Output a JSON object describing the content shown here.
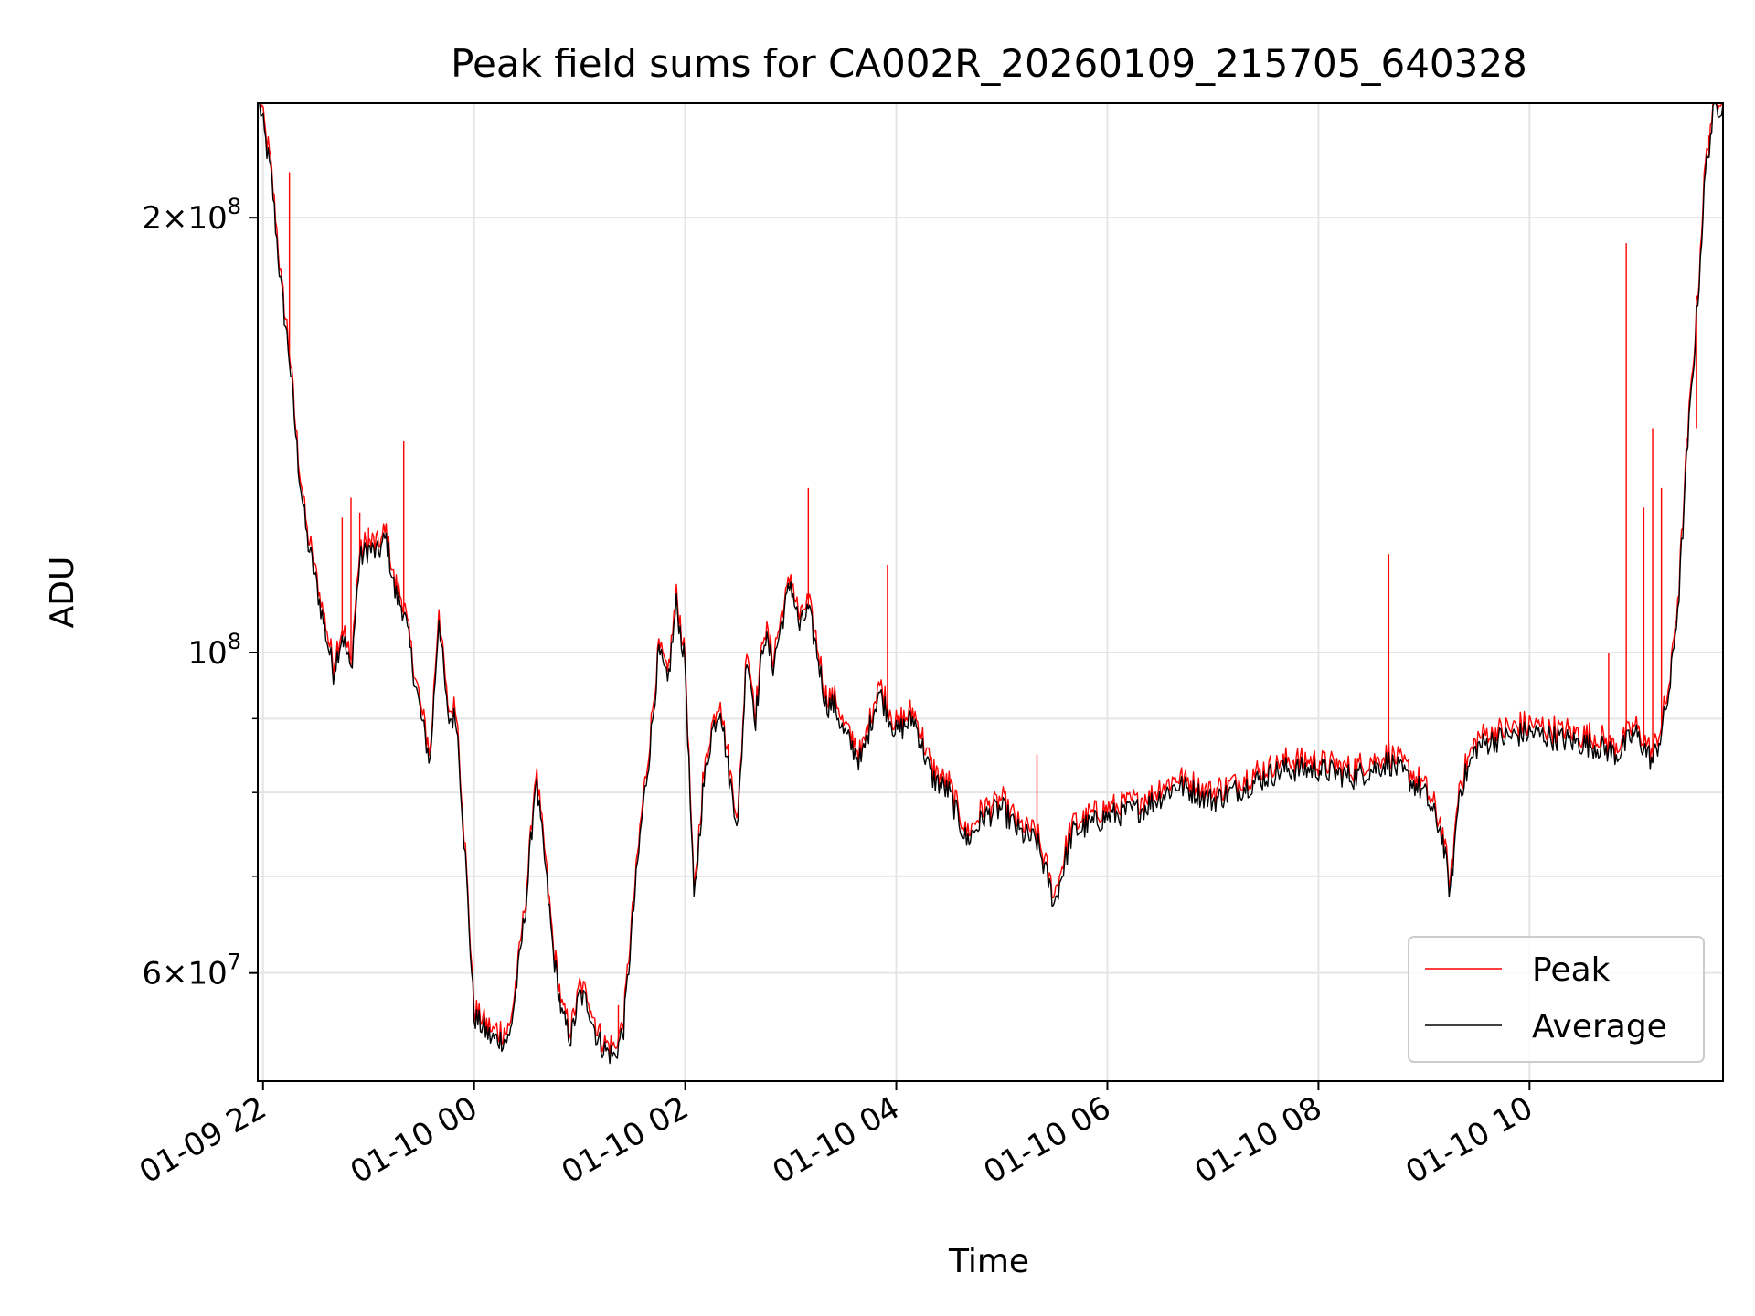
{
  "chart_data": {
    "type": "line",
    "title": "Peak field sums for CA002R_20260109_215705_640328",
    "xlabel": "Time",
    "ylabel": "ADU",
    "yscale": "log",
    "ylim": [
      50500000,
      240000000
    ],
    "xlim": [
      "2026-01-09T21:57",
      "2026-01-10T11:50"
    ],
    "grid": true,
    "legend_position": "lower-right",
    "x_ticks": [
      {
        "label": "01-09 22",
        "value": "2026-01-09T22:00"
      },
      {
        "label": "01-10 00",
        "value": "2026-01-10T00:00"
      },
      {
        "label": "01-10 02",
        "value": "2026-01-10T02:00"
      },
      {
        "label": "01-10 04",
        "value": "2026-01-10T04:00"
      },
      {
        "label": "01-10 06",
        "value": "2026-01-10T06:00"
      },
      {
        "label": "01-10 08",
        "value": "2026-01-10T08:00"
      },
      {
        "label": "01-10 10",
        "value": "2026-01-10T10:00"
      }
    ],
    "y_ticks": [
      {
        "mantissa": "6",
        "exponent": "7",
        "value": 60000000
      },
      {
        "mantissa": "",
        "exponent": "8",
        "value": 100000000
      },
      {
        "mantissa": "2",
        "exponent": "8",
        "value": 200000000
      }
    ],
    "y_minor_ticks": [
      70000000,
      80000000,
      90000000
    ],
    "series": [
      {
        "name": "Peak",
        "color": "#ff0000"
      },
      {
        "name": "Average",
        "color": "#000000"
      }
    ],
    "x": [
      "2026-01-09T21:58",
      "2026-01-09T22:05",
      "2026-01-09T22:10",
      "2026-01-09T22:15",
      "2026-01-09T22:20",
      "2026-01-09T22:25",
      "2026-01-09T22:30",
      "2026-01-09T22:35",
      "2026-01-09T22:40",
      "2026-01-09T22:45",
      "2026-01-09T22:50",
      "2026-01-09T22:55",
      "2026-01-09T23:00",
      "2026-01-09T23:05",
      "2026-01-09T23:10",
      "2026-01-09T23:15",
      "2026-01-09T23:20",
      "2026-01-09T23:25",
      "2026-01-09T23:30",
      "2026-01-09T23:35",
      "2026-01-09T23:40",
      "2026-01-09T23:45",
      "2026-01-09T23:50",
      "2026-01-09T23:55",
      "2026-01-10T00:00",
      "2026-01-10T00:10",
      "2026-01-10T00:20",
      "2026-01-10T00:25",
      "2026-01-10T00:30",
      "2026-01-10T00:35",
      "2026-01-10T00:40",
      "2026-01-10T00:45",
      "2026-01-10T00:50",
      "2026-01-10T00:55",
      "2026-01-10T01:00",
      "2026-01-10T01:05",
      "2026-01-10T01:10",
      "2026-01-10T01:15",
      "2026-01-10T01:20",
      "2026-01-10T01:25",
      "2026-01-10T01:30",
      "2026-01-10T01:35",
      "2026-01-10T01:40",
      "2026-01-10T01:45",
      "2026-01-10T01:50",
      "2026-01-10T01:55",
      "2026-01-10T02:00",
      "2026-01-10T02:05",
      "2026-01-10T02:10",
      "2026-01-10T02:15",
      "2026-01-10T02:20",
      "2026-01-10T02:25",
      "2026-01-10T02:30",
      "2026-01-10T02:35",
      "2026-01-10T02:40",
      "2026-01-10T02:45",
      "2026-01-10T02:50",
      "2026-01-10T02:55",
      "2026-01-10T03:00",
      "2026-01-10T03:05",
      "2026-01-10T03:10",
      "2026-01-10T03:15",
      "2026-01-10T03:20",
      "2026-01-10T03:25",
      "2026-01-10T03:30",
      "2026-01-10T03:40",
      "2026-01-10T03:50",
      "2026-01-10T04:00",
      "2026-01-10T04:10",
      "2026-01-10T04:20",
      "2026-01-10T04:30",
      "2026-01-10T04:40",
      "2026-01-10T04:50",
      "2026-01-10T05:00",
      "2026-01-10T05:10",
      "2026-01-10T05:20",
      "2026-01-10T05:30",
      "2026-01-10T05:40",
      "2026-01-10T05:50",
      "2026-01-10T06:00",
      "2026-01-10T06:20",
      "2026-01-10T06:40",
      "2026-01-10T07:00",
      "2026-01-10T07:20",
      "2026-01-10T07:40",
      "2026-01-10T08:00",
      "2026-01-10T08:20",
      "2026-01-10T08:40",
      "2026-01-10T09:00",
      "2026-01-10T09:10",
      "2026-01-10T09:15",
      "2026-01-10T09:20",
      "2026-01-10T09:30",
      "2026-01-10T09:40",
      "2026-01-10T10:00",
      "2026-01-10T10:20",
      "2026-01-10T10:40",
      "2026-01-10T10:50",
      "2026-01-10T11:00",
      "2026-01-10T11:10",
      "2026-01-10T11:15",
      "2026-01-10T11:20",
      "2026-01-10T11:25",
      "2026-01-10T11:30",
      "2026-01-10T11:35",
      "2026-01-10T11:40",
      "2026-01-10T11:45",
      "2026-01-10T11:50"
    ],
    "average": [
      240000000,
      212000000,
      180000000,
      160000000,
      135000000,
      120000000,
      112000000,
      104000000,
      97000000,
      103000000,
      97000000,
      116000000,
      118000000,
      117000000,
      120000000,
      110000000,
      107000000,
      98000000,
      90000000,
      84000000,
      106000000,
      90000000,
      90000000,
      72000000,
      56000000,
      54000000,
      54000000,
      60000000,
      68000000,
      82000000,
      72000000,
      62000000,
      56000000,
      54000000,
      58000000,
      57000000,
      54000000,
      53000000,
      52500000,
      55000000,
      65000000,
      76000000,
      86000000,
      100000000,
      95000000,
      108000000,
      98000000,
      67000000,
      80000000,
      88000000,
      92000000,
      82000000,
      76000000,
      100000000,
      90000000,
      103000000,
      98000000,
      105000000,
      112000000,
      104000000,
      107000000,
      100000000,
      92000000,
      92000000,
      88000000,
      84000000,
      94000000,
      88000000,
      90000000,
      82000000,
      80000000,
      74000000,
      77000000,
      78000000,
      75000000,
      74000000,
      67000000,
      75000000,
      76000000,
      77000000,
      78000000,
      81000000,
      79000000,
      81000000,
      83000000,
      83000000,
      82000000,
      84000000,
      80000000,
      75000000,
      68000000,
      80000000,
      86000000,
      87000000,
      88000000,
      87000000,
      86000000,
      85000000,
      88000000,
      84000000,
      88000000,
      95000000,
      110000000,
      140000000,
      170000000,
      215000000,
      238000000,
      240000000
    ],
    "peak_spikes": [
      {
        "x": "2026-01-09T22:15",
        "value": 215000000
      },
      {
        "x": "2026-01-09T22:45",
        "value": 124000000
      },
      {
        "x": "2026-01-09T22:50",
        "value": 128000000
      },
      {
        "x": "2026-01-09T22:55",
        "value": 125000000
      },
      {
        "x": "2026-01-09T23:00",
        "value": 122000000
      },
      {
        "x": "2026-01-09T23:20",
        "value": 140000000
      },
      {
        "x": "2026-01-10T01:22",
        "value": 57000000
      },
      {
        "x": "2026-01-10T03:10",
        "value": 130000000
      },
      {
        "x": "2026-01-10T03:55",
        "value": 115000000
      },
      {
        "x": "2026-01-10T05:20",
        "value": 85000000
      },
      {
        "x": "2026-01-10T08:40",
        "value": 117000000
      },
      {
        "x": "2026-01-10T10:45",
        "value": 100000000
      },
      {
        "x": "2026-01-10T10:55",
        "value": 192000000
      },
      {
        "x": "2026-01-10T11:05",
        "value": 126000000
      },
      {
        "x": "2026-01-10T11:10",
        "value": 143000000
      },
      {
        "x": "2026-01-10T11:15",
        "value": 130000000
      },
      {
        "x": "2026-01-10T11:35",
        "value": 143000000
      },
      {
        "x": "2026-01-10T11:42",
        "value": 228000000
      }
    ]
  }
}
